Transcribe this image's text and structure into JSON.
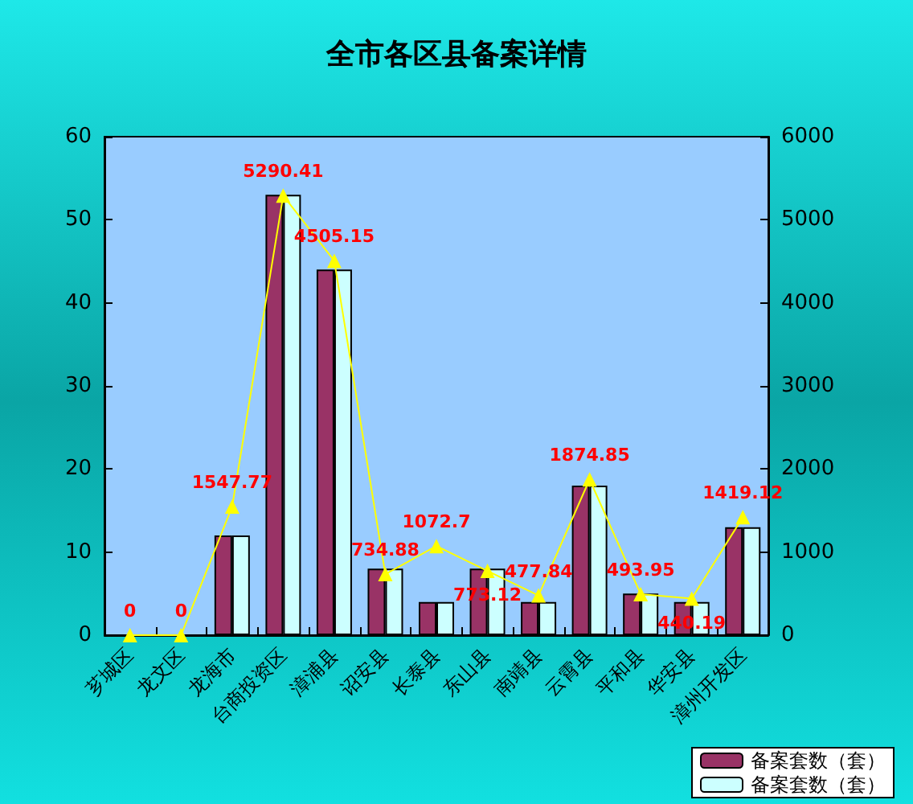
{
  "chart_data": {
    "type": "bar",
    "title": "全市各区县备案详情",
    "categories": [
      "芗城区",
      "龙文区",
      "龙海市",
      "台商投资区",
      "漳浦县",
      "诏安县",
      "长泰县",
      "东山县",
      "南靖县",
      "云霄县",
      "平和县",
      "华安县",
      "漳州开发区"
    ],
    "series": [
      {
        "name": "备案套数（套）",
        "color": "#993366",
        "values": [
          0,
          0,
          12,
          53,
          44,
          8,
          4,
          8,
          4,
          18,
          5,
          4,
          13
        ]
      },
      {
        "name": "备案套数（套）",
        "color": "#ccffff",
        "values": [
          0,
          0,
          12,
          53,
          44,
          8,
          4,
          8,
          4,
          18,
          5,
          4,
          13
        ]
      },
      {
        "type": "line",
        "axis": "y2",
        "color": "#ffff00",
        "marker": "triangle",
        "values": [
          0,
          0,
          1547.77,
          5290.41,
          4505.15,
          734.88,
          1072.7,
          773.12,
          477.84,
          1874.85,
          493.95,
          440.19,
          1419.12
        ],
        "value_labels": [
          "0",
          "0",
          "1547.77",
          "5290.41",
          "4505.15",
          "734.88",
          "1072.7",
          "773.12",
          "477.84",
          "1874.85",
          "493.95",
          "440.19",
          "1419.12"
        ]
      }
    ],
    "ylim": [
      0,
      60
    ],
    "yticks": [
      0,
      10,
      20,
      30,
      40,
      50,
      60
    ],
    "y2lim": [
      0,
      6000
    ],
    "y2ticks": [
      0,
      1000,
      2000,
      3000,
      4000,
      5000,
      6000
    ],
    "grid": false,
    "legend": "bottom right"
  }
}
